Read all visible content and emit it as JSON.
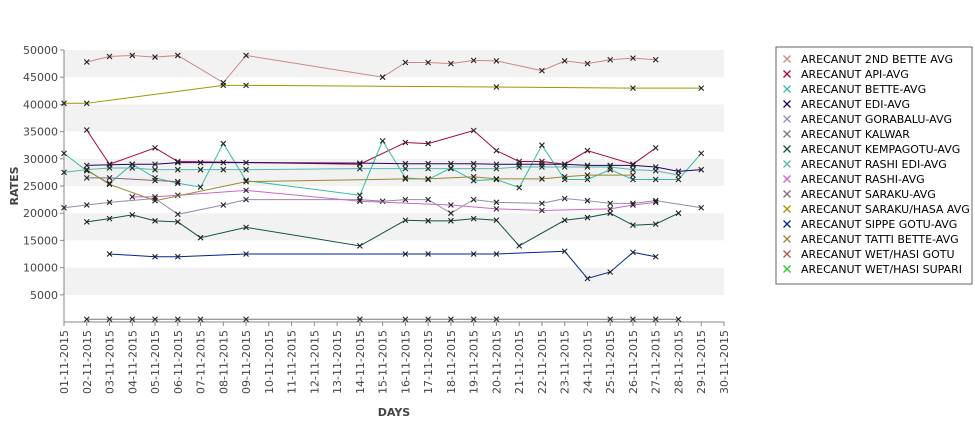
{
  "chart_data": {
    "type": "line",
    "title": "",
    "xlabel": "DAYS",
    "ylabel": "RATES",
    "ylim": [
      0,
      50000
    ],
    "yticks": [
      5000,
      10000,
      15000,
      20000,
      25000,
      30000,
      35000,
      40000,
      45000,
      50000
    ],
    "grid": "horizontal alternating bands",
    "legend_position": "right",
    "categories": [
      "01-11-2015",
      "02-11-2015",
      "03-11-2015",
      "04-11-2015",
      "05-11-2015",
      "06-11-2015",
      "07-11-2015",
      "08-11-2015",
      "09-11-2015",
      "10-11-2015",
      "11-11-2015",
      "12-11-2015",
      "13-11-2015",
      "14-11-2015",
      "15-11-2015",
      "16-11-2015",
      "17-11-2015",
      "18-11-2015",
      "19-11-2015",
      "20-11-2015",
      "21-11-2015",
      "22-11-2015",
      "23-11-2015",
      "24-11-2015",
      "25-11-2015",
      "26-11-2015",
      "27-11-2015",
      "28-11-2015",
      "29-11-2015",
      "30-11-2015"
    ],
    "series": [
      {
        "name": "ARECANUT 2ND BETTE AVG",
        "color": "#cc8888",
        "values": [
          null,
          47800,
          48800,
          49000,
          48700,
          49000,
          null,
          44000,
          49000,
          null,
          null,
          null,
          null,
          null,
          45000,
          47700,
          47700,
          47500,
          48100,
          48000,
          null,
          46200,
          48000,
          47500,
          48200,
          48500,
          48200,
          null,
          null,
          null
        ]
      },
      {
        "name": "ARECANUT API-AVG",
        "color": "#aa0044",
        "values": [
          null,
          35300,
          29000,
          null,
          32000,
          29500,
          null,
          null,
          null,
          null,
          null,
          null,
          null,
          29000,
          null,
          33000,
          32800,
          null,
          35200,
          31500,
          29500,
          29500,
          29000,
          31500,
          null,
          29000,
          32000,
          null,
          null,
          null
        ]
      },
      {
        "name": "ARECANUT BETTE-AVG",
        "color": "#33bbaa",
        "values": [
          31000,
          27800,
          25500,
          29000,
          26500,
          25500,
          24800,
          32800,
          26000,
          null,
          null,
          null,
          null,
          23300,
          33300,
          26500,
          26200,
          28300,
          26000,
          26200,
          24700,
          32500,
          26200,
          26200,
          28000,
          26200,
          26200,
          26200,
          31000,
          null
        ]
      },
      {
        "name": "ARECANUT EDI-AVG",
        "color": "#220066",
        "values": [
          null,
          28800,
          28900,
          29000,
          29000,
          29300,
          29300,
          29300,
          29300,
          null,
          null,
          null,
          null,
          29200,
          null,
          29100,
          29100,
          29100,
          29100,
          29000,
          29000,
          29000,
          29000,
          28800,
          28800,
          28800,
          28500,
          27700,
          28000,
          null
        ]
      },
      {
        "name": "ARECANUT GORABALU-AVG",
        "color": "#9988aa",
        "values": [
          21000,
          21500,
          22000,
          null,
          22700,
          19800,
          null,
          21500,
          22500,
          null,
          null,
          null,
          null,
          22500,
          22200,
          22500,
          22500,
          20000,
          22500,
          22000,
          null,
          21800,
          22700,
          22300,
          21800,
          21800,
          22300,
          null,
          21000,
          null
        ]
      },
      {
        "name": "ARECANUT KALWAR",
        "color": "#777777",
        "values": [
          null,
          500,
          500,
          500,
          500,
          500,
          500,
          null,
          500,
          null,
          null,
          null,
          null,
          500,
          null,
          500,
          500,
          500,
          500,
          500,
          null,
          null,
          null,
          null,
          500,
          500,
          500,
          500,
          null,
          null
        ]
      },
      {
        "name": "ARECANUT KEMPAGOTU-AVG",
        "color": "#115544",
        "values": [
          null,
          18400,
          19000,
          19700,
          18600,
          18400,
          15500,
          null,
          17400,
          null,
          null,
          null,
          null,
          14000,
          null,
          18700,
          18600,
          18600,
          19000,
          18700,
          14000,
          null,
          18700,
          19200,
          20000,
          17800,
          18000,
          20000,
          null,
          null
        ]
      },
      {
        "name": "ARECANUT RASHI EDI-AVG",
        "color": "#55bbaa",
        "values": [
          27500,
          28000,
          28300,
          28300,
          28000,
          28000,
          28000,
          28000,
          28000,
          null,
          null,
          null,
          null,
          28200,
          null,
          28200,
          28200,
          28200,
          28200,
          28200,
          28500,
          28500,
          28500,
          28500,
          28500,
          28000,
          27800,
          27000,
          null,
          null
        ]
      },
      {
        "name": "ARECANUT RASHI-AVG",
        "color": "#cc66cc",
        "values": [
          null,
          null,
          null,
          23000,
          23000,
          23300,
          null,
          null,
          24200,
          null,
          null,
          null,
          null,
          22200,
          null,
          null,
          null,
          21500,
          null,
          20800,
          null,
          20500,
          null,
          null,
          20800,
          21500,
          22000,
          null,
          null,
          null
        ]
      },
      {
        "name": "ARECANUT SARAKU-AVG",
        "color": "#886677",
        "values": [
          null,
          26500,
          26500,
          null,
          26000,
          25800,
          null,
          null,
          null,
          null,
          null,
          null,
          null,
          null,
          null,
          null,
          null,
          null,
          null,
          null,
          null,
          null,
          null,
          null,
          null,
          null,
          null,
          null,
          null,
          null
        ]
      },
      {
        "name": "ARECANUT SARAKU/HASA AVG",
        "color": "#999900",
        "values": [
          40200,
          40200,
          null,
          null,
          null,
          null,
          null,
          43500,
          43500,
          null,
          null,
          null,
          null,
          null,
          null,
          null,
          null,
          null,
          null,
          43200,
          null,
          null,
          null,
          null,
          null,
          43000,
          null,
          null,
          43000,
          null
        ]
      },
      {
        "name": "ARECANUT SIPPE GOTU-AVG",
        "color": "#002299",
        "values": [
          null,
          null,
          12500,
          null,
          12000,
          12000,
          null,
          null,
          12500,
          null,
          null,
          null,
          null,
          null,
          null,
          12500,
          12500,
          null,
          12500,
          12500,
          null,
          null,
          13000,
          8000,
          9200,
          12800,
          12000,
          null,
          null,
          null
        ]
      },
      {
        "name": "ARECANUT TATTI BETTE-AVG",
        "color": "#998833",
        "values": [
          null,
          28000,
          25300,
          null,
          22300,
          null,
          null,
          null,
          25800,
          null,
          null,
          null,
          null,
          null,
          null,
          26300,
          26300,
          null,
          26700,
          26300,
          null,
          26300,
          26700,
          27000,
          null,
          27000,
          null,
          null,
          null,
          null
        ]
      },
      {
        "name": "ARECANUT WET/HASI GOTU",
        "color": "#aa5544",
        "values": [
          null,
          null,
          null,
          null,
          null,
          null,
          null,
          null,
          null,
          null,
          null,
          null,
          null,
          null,
          null,
          null,
          null,
          null,
          null,
          null,
          null,
          null,
          null,
          null,
          null,
          null,
          null,
          null,
          null,
          null
        ]
      },
      {
        "name": "ARECANUT WET/HASI SUPARI",
        "color": "#22cc22",
        "values": [
          null,
          null,
          null,
          null,
          null,
          null,
          null,
          null,
          null,
          null,
          null,
          null,
          null,
          null,
          null,
          null,
          null,
          null,
          null,
          null,
          null,
          null,
          null,
          null,
          null,
          null,
          null,
          null,
          null,
          null
        ]
      }
    ]
  }
}
